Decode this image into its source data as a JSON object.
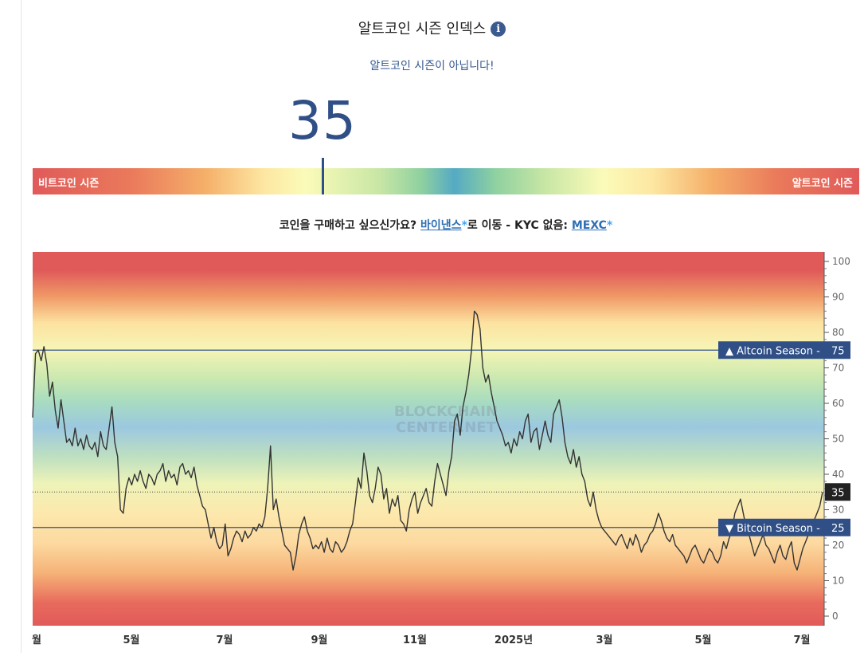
{
  "header": {
    "title": "알트코인 시즌 인덱스",
    "info_icon": "info-circle-icon",
    "info_glyph": "i",
    "status": "알트코인 시즌이 아닙니다!"
  },
  "index_value": "35",
  "gauge": {
    "left_label": "비트코인 시즌",
    "right_label": "알트코인 시즌",
    "value": 35
  },
  "promo": {
    "text1": "코인을 구매하고 싶으신가요? ",
    "link1": "바이낸스",
    "star": "*",
    "text2": "로 이동 - KYC 없음: ",
    "link2": "MEXC",
    "star2": "*"
  },
  "colors": {
    "line": "#333333",
    "threshold": "#2f4f86",
    "label_bg": "#2f4f86",
    "current_bg": "#222222",
    "red": "#e05a5a",
    "blue": "#55aac4"
  },
  "chart_data": {
    "type": "line",
    "watermark": [
      "BLOCKCHAIN",
      "CENTER.NET"
    ],
    "ylim": [
      0,
      100
    ],
    "y_ticks": [
      0,
      10,
      20,
      30,
      40,
      50,
      60,
      70,
      80,
      90,
      100
    ],
    "x_ticks": [
      "월",
      "5월",
      "7월",
      "9월",
      "11월",
      "2025년",
      "3월",
      "5월",
      "7월"
    ],
    "reference_lines": [
      {
        "name": "Altcoin Season",
        "value": 75,
        "label": "▲ Altcoin Season",
        "value_label": "75"
      },
      {
        "name": "Bitcoin Season",
        "value": 25,
        "label": "▼ Bitcoin Season",
        "value_label": "25"
      }
    ],
    "current": {
      "value": 35,
      "label": "35"
    },
    "series": [
      {
        "values": [
          56,
          74,
          75,
          72,
          76,
          71,
          62,
          66,
          58,
          53,
          61,
          55,
          49,
          50,
          48,
          53,
          48,
          50,
          47,
          51,
          48,
          47,
          49,
          45,
          52,
          48,
          47,
          53,
          59,
          49,
          45,
          30,
          29,
          36,
          39,
          37,
          40,
          38,
          41,
          38,
          36,
          40,
          39,
          37,
          40,
          41,
          43,
          38,
          41,
          39,
          40,
          37,
          42,
          43,
          40,
          41,
          39,
          42,
          37,
          34,
          31,
          30,
          26,
          22,
          25,
          21,
          19,
          20,
          26,
          17,
          19,
          22,
          24,
          23,
          21,
          24,
          22,
          23,
          25,
          24,
          26,
          25,
          28,
          36,
          48,
          30,
          33,
          28,
          24,
          20,
          19,
          18,
          13,
          17,
          23,
          26,
          28,
          24,
          22,
          19,
          20,
          19,
          21,
          18,
          22,
          19,
          18,
          21,
          20,
          18,
          19,
          21,
          24,
          26,
          32,
          39,
          36,
          46,
          41,
          34,
          32,
          36,
          42,
          40,
          33,
          36,
          29,
          33,
          31,
          34,
          27,
          26,
          24,
          30,
          33,
          35,
          29,
          32,
          34,
          36,
          32,
          31,
          38,
          43,
          40,
          37,
          34,
          41,
          45,
          55,
          57,
          51,
          59,
          63,
          68,
          75,
          86,
          85,
          81,
          70,
          66,
          68,
          63,
          59,
          55,
          53,
          51,
          48,
          49,
          46,
          50,
          48,
          52,
          50,
          55,
          57,
          49,
          52,
          53,
          47,
          51,
          55,
          51,
          49,
          57,
          59,
          61,
          56,
          49,
          45,
          43,
          47,
          42,
          45,
          40,
          38,
          33,
          31,
          35,
          30,
          27,
          25,
          24,
          23,
          22,
          21,
          20,
          22,
          23,
          21,
          19,
          22,
          20,
          23,
          21,
          18,
          20,
          21,
          23,
          24,
          26,
          29,
          27,
          24,
          22,
          21,
          23,
          20,
          19,
          18,
          17,
          15,
          17,
          19,
          20,
          18,
          16,
          15,
          17,
          19,
          18,
          16,
          15,
          17,
          21,
          19,
          22,
          24,
          29,
          31,
          33,
          29,
          25,
          23,
          20,
          17,
          19,
          21,
          23,
          20,
          19,
          17,
          15,
          18,
          20,
          17,
          16,
          19,
          21,
          15,
          13,
          16,
          19,
          21,
          23,
          25,
          27,
          29,
          31,
          35
        ],
        "color": "#333333"
      }
    ]
  }
}
